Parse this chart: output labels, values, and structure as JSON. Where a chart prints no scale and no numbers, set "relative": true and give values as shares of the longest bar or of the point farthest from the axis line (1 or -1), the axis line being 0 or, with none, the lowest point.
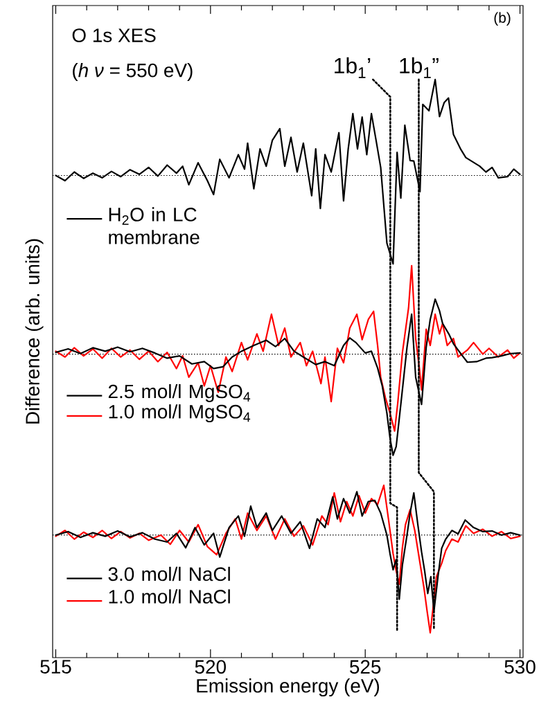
{
  "chart_data": {
    "type": "line",
    "relative": true,
    "xlabel": "Emission energy (eV)",
    "ylabel": "Difference (arb. units)",
    "xlim": [
      514.9,
      530.1
    ],
    "xticks": [
      515,
      {
        "value": 516,
        "label": null
      },
      {
        "value": 517,
        "label": null
      },
      {
        "value": 518,
        "label": null
      },
      {
        "value": 519,
        "label": null
      },
      520,
      {
        "value": 521,
        "label": null
      },
      {
        "value": 522,
        "label": null
      },
      {
        "value": 523,
        "label": null
      },
      {
        "value": 524,
        "label": null
      },
      525,
      {
        "value": 526,
        "label": null
      },
      {
        "value": 527,
        "label": null
      },
      {
        "value": 528,
        "label": null
      },
      {
        "value": 529,
        "label": null
      },
      530
    ],
    "legend": "left",
    "line_style": "solid",
    "annotations": [
      "O 1s XES",
      "(*h* *ν* = 550 eV)",
      "(b)",
      {
        "text": "1b$_{1}$’",
        "x": 525.25,
        "y": 1.0
      },
      {
        "text": "1b$_{1}$”",
        "x": 526.73,
        "y": 1.0
      }
    ],
    "ref_lines": [
      {
        "axis": "y",
        "value": 0.834,
        "color": "#000000",
        "line_style": "dotted"
      },
      {
        "axis": "y",
        "value": 0.525,
        "color": "#000000",
        "line_style": "dotted"
      },
      {
        "axis": "y",
        "value": 0.212,
        "color": "#000000",
        "line_style": "dotted"
      }
    ],
    "series": [
      {
        "name": "H$_{2}$O in LC membrane",
        "color": "#000000",
        "x": [
          515.0,
          515.3,
          515.6,
          515.9,
          516.2,
          516.5,
          516.8,
          517.1,
          517.4,
          517.7,
          518.0,
          518.3,
          518.6,
          518.9,
          519.1,
          519.3,
          519.6,
          519.9,
          520.1,
          520.3,
          520.6,
          520.9,
          521.1,
          521.2,
          521.4,
          521.6,
          521.8,
          522.0,
          522.24,
          522.4,
          522.6,
          522.8,
          523.0,
          523.27,
          523.4,
          523.55,
          523.7,
          523.9,
          524.15,
          524.3,
          524.45,
          524.6,
          524.75,
          524.9,
          525.05,
          525.2,
          525.35,
          525.5,
          525.7,
          525.9,
          526.03,
          526.15,
          526.28,
          526.45,
          526.57,
          526.77,
          526.86,
          527.06,
          527.26,
          527.4,
          527.55,
          527.69,
          527.85,
          528.09,
          528.25,
          528.43,
          528.7,
          528.9,
          529.1,
          529.3,
          529.6,
          529.8,
          530.0
        ],
        "values": [
          0.834,
          0.825,
          0.84,
          0.829,
          0.838,
          0.83,
          0.841,
          0.832,
          0.844,
          0.836,
          0.848,
          0.833,
          0.852,
          0.838,
          0.85,
          0.818,
          0.856,
          0.825,
          0.801,
          0.862,
          0.83,
          0.87,
          0.845,
          0.89,
          0.811,
          0.88,
          0.85,
          0.895,
          0.915,
          0.85,
          0.9,
          0.84,
          0.89,
          0.799,
          0.88,
          0.777,
          0.87,
          0.84,
          0.908,
          0.79,
          0.88,
          0.941,
          0.88,
          0.935,
          0.87,
          0.941,
          0.895,
          0.848,
          0.717,
          0.681,
          0.874,
          0.795,
          0.921,
          0.86,
          0.859,
          0.806,
          0.957,
          0.946,
          1.0,
          0.936,
          0.96,
          0.968,
          0.905,
          0.879,
          0.865,
          0.859,
          0.85,
          0.84,
          0.848,
          0.83,
          0.832,
          0.845,
          0.836
        ]
      },
      {
        "name": "2.5 mol/l MgSO$_{4}$",
        "color": "#000000",
        "x": [
          515.0,
          515.4,
          515.8,
          516.2,
          516.6,
          517.0,
          517.4,
          517.8,
          518.2,
          518.6,
          519.0,
          519.4,
          519.8,
          520.1,
          520.4,
          520.7,
          521.0,
          521.4,
          521.8,
          522.1,
          522.4,
          522.7,
          523.0,
          523.4,
          523.7,
          524.0,
          524.3,
          524.5,
          524.7,
          525.0,
          525.2,
          525.4,
          525.55,
          525.7,
          525.8,
          525.9,
          526.0,
          526.15,
          526.35,
          526.5,
          526.63,
          526.82,
          526.97,
          527.1,
          527.26,
          527.4,
          527.5,
          527.7,
          527.85,
          528.1,
          528.3,
          528.6,
          528.9,
          529.1,
          529.4,
          529.7,
          530.0
        ],
        "values": [
          0.528,
          0.534,
          0.526,
          0.536,
          0.53,
          0.537,
          0.529,
          0.535,
          0.527,
          0.518,
          0.522,
          0.508,
          0.512,
          0.5,
          0.503,
          0.52,
          0.53,
          0.54,
          0.549,
          0.538,
          0.552,
          0.53,
          0.52,
          0.507,
          0.512,
          0.505,
          0.54,
          0.553,
          0.545,
          0.527,
          0.53,
          0.501,
          0.47,
          0.423,
          0.38,
          0.35,
          0.365,
          0.438,
          0.537,
          0.594,
          0.485,
          0.438,
          0.537,
          0.585,
          0.62,
          0.6,
          0.578,
          0.56,
          0.543,
          0.525,
          0.511,
          0.512,
          0.518,
          0.519,
          0.522,
          0.526,
          0.527
        ]
      },
      {
        "name": "1.0 mol/l MgSO$_{4}$",
        "color": "#ff0000",
        "x": [
          515.0,
          515.3,
          515.6,
          515.9,
          516.2,
          516.5,
          516.8,
          517.1,
          517.4,
          517.7,
          518.0,
          518.3,
          518.6,
          518.9,
          519.1,
          519.3,
          519.6,
          519.8,
          520.0,
          520.25,
          520.5,
          520.7,
          521.0,
          521.2,
          521.5,
          521.7,
          521.97,
          522.2,
          522.4,
          522.6,
          522.9,
          523.1,
          523.3,
          523.57,
          523.7,
          523.9,
          524.1,
          524.3,
          524.5,
          524.73,
          524.9,
          525.1,
          525.27,
          525.4,
          525.5,
          525.65,
          525.8,
          525.95,
          526.05,
          526.2,
          526.4,
          526.5,
          526.63,
          526.75,
          526.82,
          526.97,
          527.1,
          527.26,
          527.4,
          527.5,
          527.65,
          527.85,
          528.0,
          528.3,
          528.5,
          528.8,
          529.0,
          529.3,
          529.6,
          529.8,
          530.0
        ],
        "values": [
          0.53,
          0.52,
          0.536,
          0.522,
          0.534,
          0.518,
          0.535,
          0.52,
          0.532,
          0.516,
          0.53,
          0.512,
          0.528,
          0.5,
          0.522,
          0.485,
          0.51,
          0.47,
          0.505,
          0.459,
          0.52,
          0.495,
          0.545,
          0.515,
          0.56,
          0.53,
          0.594,
          0.54,
          0.57,
          0.52,
          0.545,
          0.505,
          0.53,
          0.474,
          0.52,
          0.443,
          0.535,
          0.51,
          0.57,
          0.594,
          0.55,
          0.585,
          0.599,
          0.54,
          0.485,
          0.45,
          0.423,
          0.392,
          0.44,
          0.527,
          0.605,
          0.678,
          0.552,
          0.5,
          0.463,
          0.568,
          0.54,
          0.594,
          0.56,
          0.578,
          0.54,
          0.552,
          0.52,
          0.532,
          0.545,
          0.525,
          0.535,
          0.52,
          0.532,
          0.518,
          0.527
        ]
      },
      {
        "name": "3.0 mol/l NaCl",
        "color": "#000000",
        "x": [
          515.0,
          515.4,
          515.8,
          516.2,
          516.6,
          517.0,
          517.4,
          517.8,
          518.2,
          518.6,
          518.9,
          519.2,
          519.5,
          519.8,
          520.1,
          520.3,
          520.6,
          520.9,
          521.1,
          521.3,
          521.5,
          521.8,
          522.0,
          522.3,
          522.6,
          522.9,
          523.2,
          523.45,
          523.7,
          523.95,
          524.1,
          524.3,
          524.5,
          524.73,
          524.9,
          525.1,
          525.31,
          525.5,
          525.7,
          525.8,
          525.9,
          526.0,
          526.1,
          526.2,
          526.35,
          526.45,
          526.57,
          526.7,
          526.82,
          526.92,
          527.02,
          527.12,
          527.22,
          527.35,
          527.47,
          527.6,
          527.8,
          528.0,
          528.23,
          528.5,
          528.8,
          529.1,
          529.4,
          529.7,
          530.0
        ],
        "values": [
          0.212,
          0.218,
          0.208,
          0.216,
          0.21,
          0.219,
          0.209,
          0.216,
          0.205,
          0.2,
          0.215,
          0.19,
          0.225,
          0.195,
          0.215,
          0.174,
          0.225,
          0.245,
          0.21,
          0.262,
          0.225,
          0.25,
          0.22,
          0.245,
          0.215,
          0.235,
          0.189,
          0.24,
          0.225,
          0.278,
          0.24,
          0.275,
          0.25,
          0.287,
          0.245,
          0.27,
          0.272,
          0.25,
          0.212,
          0.18,
          0.152,
          0.17,
          0.101,
          0.16,
          0.212,
          0.25,
          0.285,
          0.23,
          0.183,
          0.15,
          0.111,
          0.14,
          0.08,
          0.14,
          0.189,
          0.205,
          0.22,
          0.214,
          0.238,
          0.225,
          0.218,
          0.219,
          0.212,
          0.216,
          0.212
        ]
      },
      {
        "name": "1.0 mol/l NaCl",
        "color": "#ff0000",
        "x": [
          515.0,
          515.3,
          515.6,
          515.9,
          516.2,
          516.5,
          516.8,
          517.1,
          517.4,
          517.7,
          518.0,
          518.4,
          518.7,
          519.0,
          519.3,
          519.6,
          519.9,
          520.2,
          520.5,
          520.8,
          521.0,
          521.2,
          521.5,
          521.8,
          522.1,
          522.4,
          522.7,
          523.0,
          523.3,
          523.6,
          523.8,
          524.0,
          524.2,
          524.4,
          524.6,
          524.8,
          525.0,
          525.2,
          525.4,
          525.6,
          525.75,
          525.9,
          526.0,
          526.1,
          526.2,
          526.3,
          526.45,
          526.6,
          526.75,
          526.9,
          527.0,
          527.1,
          527.2,
          527.3,
          527.47,
          527.6,
          527.8,
          528.0,
          528.25,
          528.5,
          528.8,
          529.1,
          529.4,
          529.7,
          530.0
        ],
        "values": [
          0.21,
          0.22,
          0.205,
          0.217,
          0.208,
          0.22,
          0.206,
          0.218,
          0.207,
          0.215,
          0.203,
          0.212,
          0.196,
          0.22,
          0.2,
          0.23,
          0.192,
          0.178,
          0.215,
          0.24,
          0.205,
          0.25,
          0.22,
          0.245,
          0.205,
          0.24,
          0.21,
          0.228,
          0.195,
          0.245,
          0.23,
          0.285,
          0.235,
          0.27,
          0.245,
          0.28,
          0.25,
          0.275,
          0.265,
          0.298,
          0.24,
          0.18,
          0.15,
          0.127,
          0.19,
          0.23,
          0.256,
          0.22,
          0.17,
          0.12,
          0.08,
          0.043,
          0.09,
          0.14,
          0.163,
          0.185,
          0.205,
          0.2,
          0.228,
          0.215,
          0.222,
          0.21,
          0.218,
          0.206,
          0.21
        ]
      },
      {
        "color": "#000000",
        "line_style": "dotted",
        "x": [
          525.25,
          525.81,
          525.81,
          526.03,
          526.03
        ],
        "values": [
          1.0,
          0.97,
          0.267,
          0.26,
          0.048
        ]
      },
      {
        "color": "#000000",
        "line_style": "dotted",
        "x": [
          526.73,
          526.73,
          527.22,
          527.22
        ],
        "values": [
          1.0,
          0.32,
          0.287,
          0.051
        ]
      }
    ]
  }
}
